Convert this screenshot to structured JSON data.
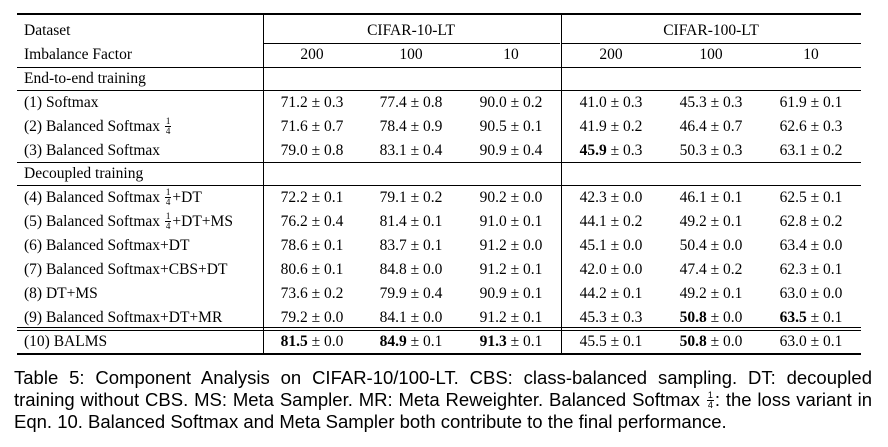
{
  "header": {
    "dataset_label": "Dataset",
    "imbalance_label": "Imbalance Factor",
    "group1": "CIFAR-10-LT",
    "group2": "CIFAR-100-LT",
    "factors": [
      "200",
      "100",
      "10",
      "200",
      "100",
      "10"
    ]
  },
  "sections": {
    "end_to_end": "End-to-end training",
    "decoupled": "Decoupled training"
  },
  "rows": [
    {
      "label": "(1) Softmax",
      "cells": [
        {
          "v": "71.2",
          "pm": "± 0.3"
        },
        {
          "v": "77.4",
          "pm": "± 0.8"
        },
        {
          "v": "90.0",
          "pm": "± 0.2"
        },
        {
          "v": "41.0",
          "pm": "± 0.3"
        },
        {
          "v": "45.3",
          "pm": "± 0.3"
        },
        {
          "v": "61.9",
          "pm": "± 0.1"
        }
      ]
    },
    {
      "label": "(2) Balanced Softmax",
      "frac": {
        "num": "1",
        "den": "4"
      },
      "suffix": "",
      "cells": [
        {
          "v": "71.6",
          "pm": "± 0.7"
        },
        {
          "v": "78.4",
          "pm": "± 0.9"
        },
        {
          "v": "90.5",
          "pm": "± 0.1"
        },
        {
          "v": "41.9",
          "pm": "± 0.2"
        },
        {
          "v": "46.4",
          "pm": "± 0.7"
        },
        {
          "v": "62.6",
          "pm": "± 0.3"
        }
      ]
    },
    {
      "label": "(3) Balanced Softmax",
      "cells": [
        {
          "v": "79.0",
          "pm": "± 0.8"
        },
        {
          "v": "83.1",
          "pm": "± 0.4"
        },
        {
          "v": "90.9",
          "pm": "± 0.4"
        },
        {
          "v": "45.9",
          "pm": "± 0.3",
          "bold": true
        },
        {
          "v": "50.3",
          "pm": "± 0.3"
        },
        {
          "v": "63.1",
          "pm": "± 0.2"
        }
      ]
    },
    {
      "label": "(4) Balanced Softmax",
      "frac": {
        "num": "1",
        "den": "4"
      },
      "suffix": "+DT",
      "cells": [
        {
          "v": "72.2",
          "pm": "± 0.1"
        },
        {
          "v": "79.1",
          "pm": "± 0.2"
        },
        {
          "v": "90.2",
          "pm": "± 0.0"
        },
        {
          "v": "42.3",
          "pm": "± 0.0"
        },
        {
          "v": "46.1",
          "pm": "± 0.1"
        },
        {
          "v": "62.5",
          "pm": "± 0.1"
        }
      ]
    },
    {
      "label": "(5) Balanced Softmax",
      "frac": {
        "num": "1",
        "den": "4"
      },
      "suffix": "+DT+MS",
      "cells": [
        {
          "v": "76.2",
          "pm": "± 0.4"
        },
        {
          "v": "81.4",
          "pm": "± 0.1"
        },
        {
          "v": "91.0",
          "pm": "± 0.1"
        },
        {
          "v": "44.1",
          "pm": "± 0.2"
        },
        {
          "v": "49.2",
          "pm": "± 0.1"
        },
        {
          "v": "62.8",
          "pm": "± 0.2"
        }
      ]
    },
    {
      "label": "(6) Balanced Softmax+DT",
      "cells": [
        {
          "v": "78.6",
          "pm": "± 0.1"
        },
        {
          "v": "83.7",
          "pm": "± 0.1"
        },
        {
          "v": "91.2",
          "pm": "± 0.0"
        },
        {
          "v": "45.1",
          "pm": "± 0.0"
        },
        {
          "v": "50.4",
          "pm": "± 0.0"
        },
        {
          "v": "63.4",
          "pm": "± 0.0"
        }
      ]
    },
    {
      "label": "(7) Balanced Softmax+CBS+DT",
      "cells": [
        {
          "v": "80.6",
          "pm": "± 0.1"
        },
        {
          "v": "84.8",
          "pm": "± 0.0"
        },
        {
          "v": "91.2",
          "pm": "± 0.1"
        },
        {
          "v": "42.0",
          "pm": "± 0.0"
        },
        {
          "v": "47.4",
          "pm": "± 0.2"
        },
        {
          "v": "62.3",
          "pm": "± 0.1"
        }
      ]
    },
    {
      "label": "(8) DT+MS",
      "cells": [
        {
          "v": "73.6",
          "pm": "± 0.2"
        },
        {
          "v": "79.9",
          "pm": "± 0.4"
        },
        {
          "v": "90.9",
          "pm": "± 0.1"
        },
        {
          "v": "44.2",
          "pm": "± 0.1"
        },
        {
          "v": "49.2",
          "pm": "± 0.1"
        },
        {
          "v": "63.0",
          "pm": "± 0.0"
        }
      ]
    },
    {
      "label": "(9) Balanced Softmax+DT+MR",
      "cells": [
        {
          "v": "79.2",
          "pm": "± 0.0"
        },
        {
          "v": "84.1",
          "pm": "± 0.0"
        },
        {
          "v": "91.2",
          "pm": "± 0.1"
        },
        {
          "v": "45.3",
          "pm": "± 0.3"
        },
        {
          "v": "50.8",
          "pm": "± 0.0",
          "bold": true
        },
        {
          "v": "63.5",
          "pm": "± 0.1",
          "bold": true
        }
      ]
    },
    {
      "label": "(10) BALMS",
      "cells": [
        {
          "v": "81.5",
          "pm": "± 0.0",
          "bold": true
        },
        {
          "v": "84.9",
          "pm": "± 0.1",
          "bold": true
        },
        {
          "v": "91.3",
          "pm": "± 0.1",
          "bold": true
        },
        {
          "v": "45.5",
          "pm": "± 0.1"
        },
        {
          "v": "50.8",
          "pm": "± 0.0",
          "bold": true
        },
        {
          "v": "63.0",
          "pm": "± 0.1"
        }
      ]
    }
  ],
  "caption": {
    "part1": "Table 5: Component Analysis on CIFAR-10/100-LT. CBS: class-balanced sampling. DT: decoupled training without CBS. MS: Meta Sampler. MR: Meta Reweighter. Balanced Softmax",
    "frac_num": "1",
    "frac_den": "4",
    "part2": ": the loss variant in Eqn. 10. Balanced Softmax and Meta Sampler both contribute to the final performance."
  }
}
